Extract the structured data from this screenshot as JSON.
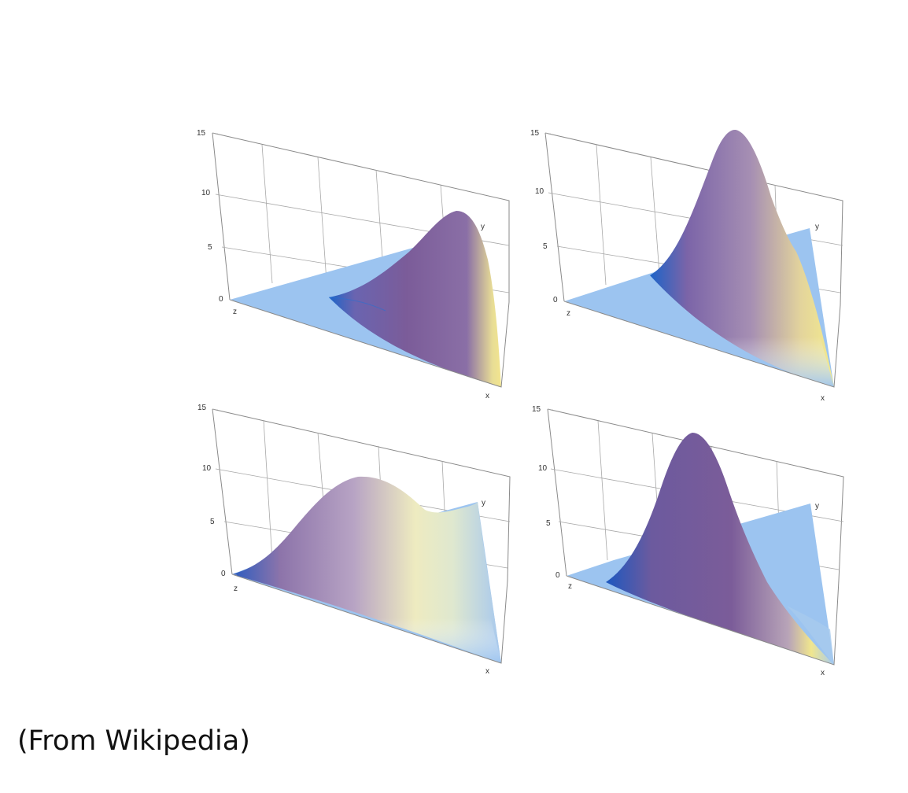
{
  "caption": "(From Wikipedia)",
  "chart_data": [
    {
      "type": "surface",
      "z_ticks": [
        "0",
        "5",
        "10",
        "15"
      ],
      "zlim": [
        0,
        15
      ],
      "axis_labels": {
        "x": "x",
        "y": "y",
        "z": "z"
      },
      "peak_value": 8.5,
      "colors": {
        "flat": "#9cc4f0",
        "peak": "#7b5c99",
        "edge": "#f2e58e"
      }
    },
    {
      "type": "surface",
      "z_ticks": [
        "0",
        "5",
        "10",
        "15"
      ],
      "zlim": [
        0,
        15
      ],
      "axis_labels": {
        "x": "x",
        "y": "y",
        "z": "z"
      },
      "peak_value": 15,
      "colors": {
        "flat": "#9cc4f0",
        "peak": "#7b5c99",
        "edge": "#f2e58e"
      }
    },
    {
      "type": "surface",
      "z_ticks": [
        "0",
        "5",
        "10",
        "15"
      ],
      "zlim": [
        0,
        15
      ],
      "axis_labels": {
        "x": "x",
        "y": "y",
        "z": "z"
      },
      "peak_value": 9,
      "colors": {
        "flat": "#9cc4f0",
        "peak": "#7b5c99",
        "edge": "#f2e58e"
      }
    },
    {
      "type": "surface",
      "z_ticks": [
        "0",
        "5",
        "10",
        "15"
      ],
      "zlim": [
        0,
        15
      ],
      "axis_labels": {
        "x": "x",
        "y": "y",
        "z": "z"
      },
      "peak_value": 13.5,
      "colors": {
        "flat": "#9cc4f0",
        "peak": "#7b5c99",
        "edge": "#f2e58e"
      }
    }
  ]
}
